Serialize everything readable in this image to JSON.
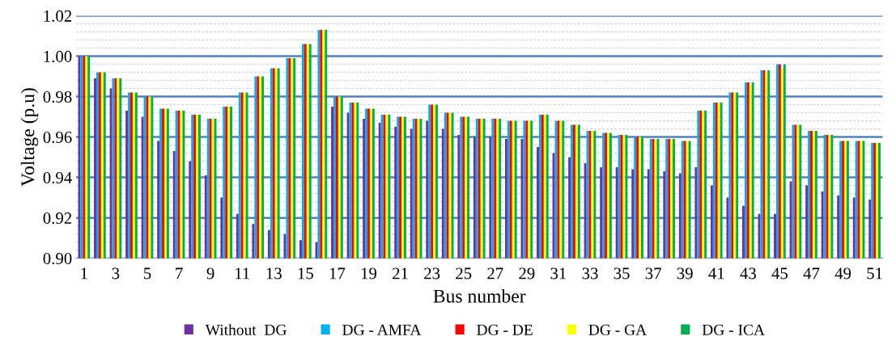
{
  "chart_data": {
    "type": "bar",
    "xlabel": "Bus number",
    "ylabel": "Voltage (p.u)",
    "categories": [
      "1",
      null,
      "3",
      null,
      "5",
      null,
      "7",
      null,
      "9",
      null,
      "11",
      null,
      "13",
      null,
      "15",
      null,
      "17",
      null,
      "19",
      null,
      "21",
      null,
      "23",
      null,
      "25",
      null,
      "27",
      null,
      "29",
      null,
      "31",
      null,
      "33",
      null,
      "35",
      null,
      "37",
      null,
      "39",
      null,
      "41",
      null,
      "43",
      null,
      "45",
      null,
      "47",
      null,
      "49",
      null,
      "51"
    ],
    "series": [
      {
        "name": "Without  DG",
        "color": "#7030a0",
        "values": [
          1.0,
          0.989,
          0.984,
          0.973,
          0.97,
          0.958,
          0.953,
          0.948,
          0.941,
          0.93,
          0.922,
          0.917,
          0.914,
          0.912,
          0.909,
          0.908,
          0.975,
          0.972,
          0.969,
          0.967,
          0.965,
          0.964,
          0.968,
          0.964,
          0.961,
          0.96,
          0.96,
          0.959,
          0.959,
          0.955,
          0.952,
          0.95,
          0.947,
          0.945,
          0.945,
          0.944,
          0.944,
          0.943,
          0.942,
          0.945,
          0.936,
          0.93,
          0.926,
          0.922,
          0.922,
          0.938,
          0.936,
          0.933,
          0.931,
          0.93,
          0.929
        ]
      },
      {
        "name": "DG - AMFA",
        "color": "#00b0f0",
        "values": [
          1.0,
          0.992,
          0.989,
          0.982,
          0.98,
          0.974,
          0.973,
          0.971,
          0.969,
          0.975,
          0.982,
          0.99,
          0.994,
          0.999,
          1.006,
          1.013,
          0.98,
          0.977,
          0.974,
          0.971,
          0.97,
          0.969,
          0.976,
          0.972,
          0.97,
          0.969,
          0.969,
          0.968,
          0.968,
          0.971,
          0.968,
          0.966,
          0.963,
          0.962,
          0.961,
          0.96,
          0.959,
          0.959,
          0.958,
          0.973,
          0.977,
          0.982,
          0.987,
          0.993,
          0.996,
          0.966,
          0.963,
          0.961,
          0.958,
          0.958,
          0.957
        ]
      },
      {
        "name": "DG - DE",
        "color": "#ff0000",
        "values": [
          1.0,
          0.992,
          0.989,
          0.982,
          0.98,
          0.974,
          0.973,
          0.971,
          0.969,
          0.975,
          0.982,
          0.99,
          0.994,
          0.999,
          1.006,
          1.013,
          0.98,
          0.977,
          0.974,
          0.971,
          0.97,
          0.969,
          0.976,
          0.972,
          0.97,
          0.969,
          0.969,
          0.968,
          0.968,
          0.971,
          0.968,
          0.966,
          0.963,
          0.962,
          0.961,
          0.96,
          0.959,
          0.959,
          0.958,
          0.973,
          0.977,
          0.982,
          0.987,
          0.993,
          0.996,
          0.966,
          0.963,
          0.961,
          0.958,
          0.958,
          0.957
        ]
      },
      {
        "name": "DG - GA",
        "color": "#ffff00",
        "values": [
          1.0,
          0.992,
          0.989,
          0.982,
          0.98,
          0.974,
          0.973,
          0.971,
          0.969,
          0.975,
          0.982,
          0.99,
          0.994,
          0.999,
          1.006,
          1.013,
          0.98,
          0.977,
          0.974,
          0.971,
          0.97,
          0.969,
          0.976,
          0.972,
          0.97,
          0.969,
          0.969,
          0.968,
          0.968,
          0.971,
          0.968,
          0.966,
          0.963,
          0.962,
          0.961,
          0.96,
          0.959,
          0.959,
          0.958,
          0.973,
          0.977,
          0.982,
          0.986,
          0.992,
          0.994,
          0.966,
          0.963,
          0.961,
          0.958,
          0.958,
          0.957
        ]
      },
      {
        "name": "DG - ICA",
        "color": "#00b050",
        "values": [
          1.0,
          0.992,
          0.989,
          0.982,
          0.98,
          0.974,
          0.973,
          0.971,
          0.969,
          0.975,
          0.982,
          0.99,
          0.994,
          0.999,
          1.006,
          1.013,
          0.98,
          0.977,
          0.974,
          0.971,
          0.97,
          0.969,
          0.976,
          0.972,
          0.97,
          0.969,
          0.969,
          0.968,
          0.968,
          0.971,
          0.968,
          0.966,
          0.963,
          0.962,
          0.961,
          0.96,
          0.959,
          0.959,
          0.958,
          0.973,
          0.977,
          0.982,
          0.987,
          0.993,
          0.996,
          0.966,
          0.963,
          0.961,
          0.958,
          0.958,
          0.957
        ]
      }
    ],
    "ylim": [
      0.9,
      1.02
    ],
    "yticks": [
      {
        "value": 0.9,
        "label": "0.90"
      },
      {
        "value": 0.92,
        "label": "0.92"
      },
      {
        "value": 0.94,
        "label": "0.94"
      },
      {
        "value": 0.96,
        "label": "0.96"
      },
      {
        "value": 0.98,
        "label": "0.98"
      },
      {
        "value": 1.0,
        "label": "1.00"
      },
      {
        "value": 1.02,
        "label": "1.02"
      }
    ],
    "grid": "y",
    "legend": "bottom"
  }
}
